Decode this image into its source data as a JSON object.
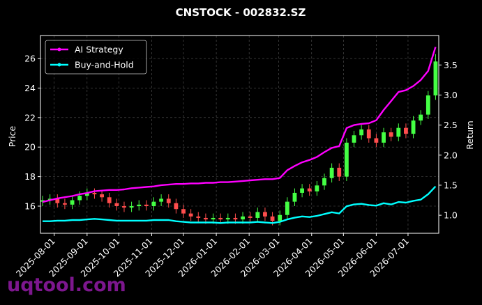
{
  "chart_data": {
    "type": "candlestick",
    "title": "CNSTOCK - 002832.SZ",
    "y_label": "Price",
    "y2_label": "Return",
    "watermark": "uqtool.com",
    "up_color": "#44ff44",
    "down_color": "#ff4d4d",
    "grid": true,
    "legend": "upper left",
    "xlim": [
      "2025-07-19",
      "2026-07-30"
    ],
    "xticks": [
      "2025-08-01",
      "2025-09-01",
      "2025-10-01",
      "2025-11-01",
      "2025-12-01",
      "2026-01-01",
      "2026-02-01",
      "2026-03-01",
      "2026-04-01",
      "2026-05-01",
      "2026-06-01",
      "2026-07-01"
    ],
    "ylim": [
      14.16,
      27.56
    ],
    "yticks": [
      16,
      18,
      20,
      22,
      24,
      26
    ],
    "y2lim": [
      0.7,
      3.99
    ],
    "y2ticks": [
      {
        "value": 1,
        "label": "1.0"
      },
      1.5,
      {
        "value": 2,
        "label": "2.0"
      },
      2.5,
      {
        "value": 3,
        "label": "3.0"
      },
      3.5
    ],
    "x": [
      "2025-07-21",
      "2025-07-28",
      "2025-08-04",
      "2025-08-11",
      "2025-08-18",
      "2025-08-25",
      "2025-09-01",
      "2025-09-08",
      "2025-09-15",
      "2025-09-22",
      "2025-09-29",
      "2025-10-06",
      "2025-10-13",
      "2025-10-20",
      "2025-10-27",
      "2025-11-03",
      "2025-11-10",
      "2025-11-17",
      "2025-11-24",
      "2025-12-01",
      "2025-12-08",
      "2025-12-15",
      "2025-12-22",
      "2025-12-29",
      "2026-01-05",
      "2026-01-12",
      "2026-01-19",
      "2026-01-26",
      "2026-02-02",
      "2026-02-09",
      "2026-02-16",
      "2026-02-23",
      "2026-03-02",
      "2026-03-09",
      "2026-03-16",
      "2026-03-23",
      "2026-03-30",
      "2026-04-06",
      "2026-04-13",
      "2026-04-20",
      "2026-04-27",
      "2026-05-04",
      "2026-05-11",
      "2026-05-18",
      "2026-05-25",
      "2026-06-01",
      "2026-06-08",
      "2026-06-15",
      "2026-06-22",
      "2026-06-29",
      "2026-07-06",
      "2026-07-13",
      "2026-07-20",
      "2026-07-27"
    ],
    "open": [
      16.3,
      16.4,
      16.5,
      16.2,
      16.1,
      16.4,
      16.7,
      16.9,
      16.8,
      16.6,
      16.2,
      16.0,
      15.9,
      16.0,
      16.1,
      16.0,
      16.3,
      16.5,
      16.2,
      15.8,
      15.5,
      15.3,
      15.2,
      15.1,
      15.2,
      15.1,
      15.2,
      15.1,
      15.3,
      15.2,
      15.6,
      15.3,
      15.0,
      15.4,
      16.3,
      16.9,
      17.2,
      17.0,
      17.4,
      17.9,
      18.6,
      18.0,
      20.3,
      20.8,
      21.2,
      20.6,
      20.3,
      21.0,
      20.7,
      21.3,
      20.9,
      21.8,
      22.2,
      23.5
    ],
    "high": [
      16.7,
      16.8,
      16.8,
      16.5,
      16.7,
      17.0,
      17.2,
      17.2,
      17.1,
      16.9,
      16.5,
      16.3,
      16.3,
      16.4,
      16.4,
      16.6,
      16.8,
      16.8,
      16.5,
      16.1,
      15.8,
      15.6,
      15.5,
      15.5,
      15.5,
      15.5,
      15.5,
      15.6,
      15.6,
      15.9,
      15.9,
      15.6,
      15.7,
      16.6,
      17.2,
      17.5,
      17.5,
      17.7,
      18.2,
      18.9,
      18.9,
      20.6,
      21.1,
      21.5,
      21.5,
      20.9,
      21.3,
      21.3,
      21.6,
      21.6,
      22.1,
      22.5,
      23.8,
      26.3
    ],
    "low": [
      16.0,
      16.1,
      15.9,
      15.8,
      15.8,
      16.1,
      16.4,
      16.5,
      16.3,
      15.9,
      15.7,
      15.6,
      15.6,
      15.7,
      15.7,
      15.7,
      16.0,
      15.9,
      15.5,
      15.2,
      15.0,
      14.9,
      14.8,
      14.8,
      14.8,
      14.8,
      14.8,
      14.8,
      14.9,
      14.9,
      15.0,
      14.7,
      14.7,
      15.1,
      16.0,
      16.6,
      16.7,
      16.7,
      17.1,
      17.6,
      17.7,
      17.7,
      20.0,
      20.5,
      20.3,
      20.0,
      20.0,
      20.4,
      20.4,
      20.6,
      20.6,
      21.5,
      21.9,
      23.2
    ],
    "close": [
      16.4,
      16.5,
      16.2,
      16.1,
      16.4,
      16.7,
      16.9,
      16.8,
      16.6,
      16.2,
      16.0,
      15.9,
      16.0,
      16.1,
      16.0,
      16.3,
      16.5,
      16.2,
      15.8,
      15.5,
      15.3,
      15.2,
      15.1,
      15.2,
      15.1,
      15.2,
      15.1,
      15.3,
      15.2,
      15.6,
      15.3,
      15.0,
      15.4,
      16.3,
      16.9,
      17.2,
      17.0,
      17.4,
      17.9,
      18.6,
      18.0,
      20.3,
      20.8,
      21.2,
      20.6,
      20.3,
      21.0,
      20.7,
      21.3,
      20.9,
      21.8,
      22.2,
      23.5,
      25.8
    ],
    "series": [
      {
        "name": "AI Strategy",
        "color": "#ff00ff",
        "axis": "y2",
        "values": [
          1.22,
          1.25,
          1.28,
          1.3,
          1.32,
          1.35,
          1.37,
          1.4,
          1.41,
          1.42,
          1.42,
          1.43,
          1.45,
          1.46,
          1.47,
          1.48,
          1.5,
          1.51,
          1.52,
          1.52,
          1.53,
          1.53,
          1.54,
          1.54,
          1.55,
          1.55,
          1.56,
          1.57,
          1.58,
          1.59,
          1.6,
          1.6,
          1.62,
          1.75,
          1.82,
          1.88,
          1.92,
          1.97,
          2.05,
          2.12,
          2.15,
          2.45,
          2.5,
          2.52,
          2.53,
          2.58,
          2.75,
          2.9,
          3.05,
          3.08,
          3.15,
          3.25,
          3.4,
          3.8
        ]
      },
      {
        "name": "Buy-and-Hold",
        "color": "#00ffff",
        "axis": "y2",
        "values": [
          0.9,
          0.9,
          0.91,
          0.91,
          0.92,
          0.92,
          0.93,
          0.94,
          0.93,
          0.92,
          0.91,
          0.91,
          0.91,
          0.91,
          0.91,
          0.92,
          0.92,
          0.92,
          0.9,
          0.89,
          0.88,
          0.88,
          0.88,
          0.88,
          0.87,
          0.88,
          0.88,
          0.88,
          0.88,
          0.89,
          0.88,
          0.87,
          0.89,
          0.93,
          0.96,
          0.98,
          0.97,
          0.99,
          1.02,
          1.05,
          1.03,
          1.15,
          1.18,
          1.19,
          1.17,
          1.16,
          1.2,
          1.18,
          1.22,
          1.21,
          1.24,
          1.26,
          1.35,
          1.48
        ]
      }
    ]
  }
}
